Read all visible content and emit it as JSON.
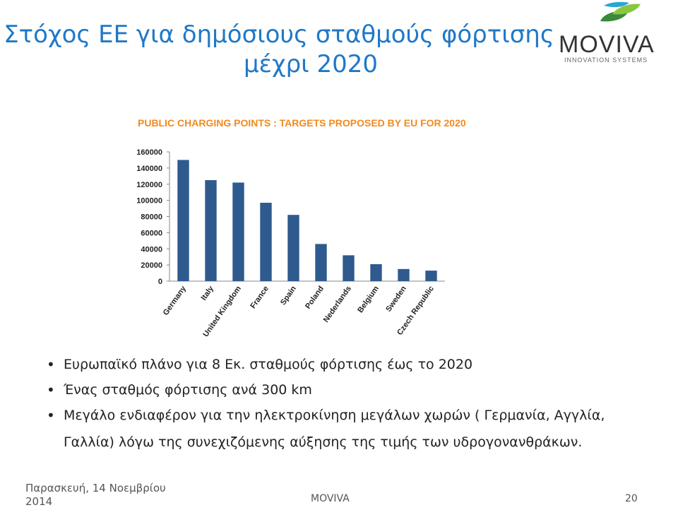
{
  "slide": {
    "title_line1": "Στόχος ΕΕ για δημόσιους σταθμούς φόρτισης",
    "title_line2": "μέχρι 2020"
  },
  "logo": {
    "brand": "MOVIVA",
    "tagline": "INNOVATION SYSTEMS",
    "leaf_colors": [
      "#3a8a3a",
      "#8cc63f",
      "#2aa6d6"
    ]
  },
  "chart_data": {
    "type": "bar",
    "title": "PUBLIC CHARGING POINTS : TARGETS PROPOSED BY EU FOR 2020",
    "categories": [
      "Germany",
      "Italy",
      "United Kingdom",
      "France",
      "Spain",
      "Poland",
      "Nederlands",
      "Belgium",
      "Sweden",
      "Czech Republic"
    ],
    "values": [
      150000,
      125000,
      122000,
      97000,
      82000,
      46000,
      32000,
      21000,
      15000,
      13000
    ],
    "yticks": [
      "0",
      "20000",
      "40000",
      "60000",
      "80000",
      "100000",
      "120000",
      "140000",
      "160000"
    ],
    "ylim": [
      0,
      160000
    ],
    "bar_color": "#2e5a8e",
    "title_color": "#f28a1e",
    "grid": false
  },
  "bullets": [
    "Ευρωπαϊκό πλάνο για 8 Εκ. σταθμούς φόρτισης έως το 2020",
    "Ένας σταθμός φόρτισης ανά 300 km",
    "Μεγάλο ενδιαφέρον για την ηλεκτροκίνηση μεγάλων χωρών ( Γερμανία, Αγγλία,"
  ],
  "bullet_continuation": "Γαλλία) λόγω της συνεχιζόμενης αύξησης της τιμής των υδρογονανθράκων.",
  "footer": {
    "date_line1": "Παρασκευή, 14 Νοεμβρίου",
    "date_line2": "2014",
    "center": "MOVIVA",
    "page": "20"
  }
}
